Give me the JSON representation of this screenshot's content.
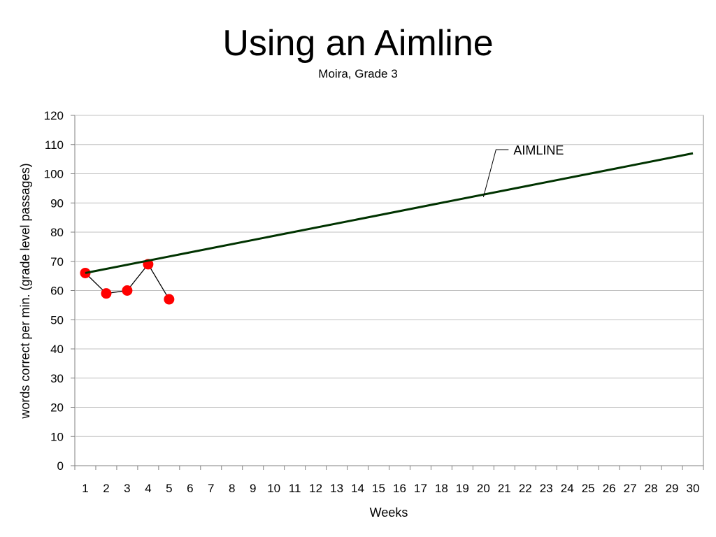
{
  "title": "Using an Aimline",
  "subtitle": "Moira, Grade 3",
  "chart_data": {
    "type": "line",
    "xlabel": "Weeks",
    "ylabel": "words correct per min. (grade level passages)",
    "x_categories": [
      "1",
      "2",
      "3",
      "4",
      "5",
      "6",
      "7",
      "8",
      "9",
      "10",
      "11",
      "12",
      "13",
      "14",
      "15",
      "16",
      "17",
      "18",
      "19",
      "20",
      "21",
      "22",
      "23",
      "24",
      "25",
      "26",
      "27",
      "28",
      "29",
      "30"
    ],
    "ylim": [
      0,
      120
    ],
    "yticks": [
      0,
      10,
      20,
      30,
      40,
      50,
      60,
      70,
      80,
      90,
      100,
      110,
      120
    ],
    "grid": true,
    "series": [
      {
        "name": "",
        "x": [
          1,
          2,
          3,
          4,
          5
        ],
        "values": [
          66,
          59,
          60,
          69,
          57
        ],
        "color": "#ff0000",
        "line_color": "#000000",
        "markers": true
      },
      {
        "name": "AIMLINE",
        "x": [
          1,
          30
        ],
        "values": [
          66,
          107
        ],
        "color": "#003300",
        "markers": false
      }
    ],
    "annotations": [
      {
        "text": "AIMLINE",
        "points_to": {
          "x": 20,
          "y": 92
        }
      }
    ]
  }
}
